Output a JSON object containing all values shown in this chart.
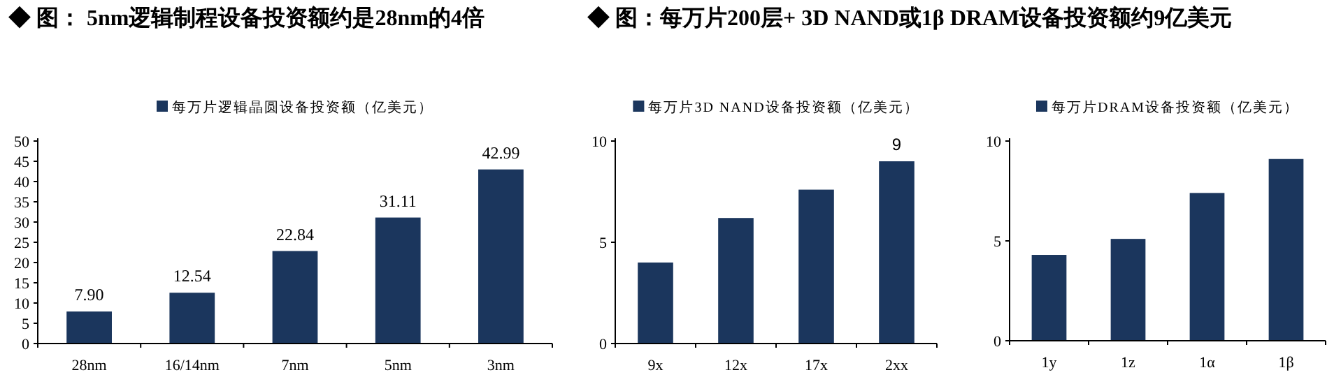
{
  "chart_data": [
    {
      "type": "bar",
      "title": "◆ 图： 5nm逻辑制程设备投资额约是28nm的4倍",
      "categories": [
        "28nm",
        "16/14nm",
        "7nm",
        "5nm",
        "3nm"
      ],
      "series": [
        {
          "name": "每万片逻辑晶圆设备投资额（亿美元）",
          "color": "#1b365d",
          "values": [
            7.9,
            12.54,
            22.84,
            31.11,
            42.99
          ],
          "value_labels": [
            "7.90",
            "12.54",
            "22.84",
            "31.11",
            "42.99"
          ]
        }
      ],
      "ylim": [
        0,
        50
      ],
      "yticks": [
        0,
        5,
        10,
        15,
        20,
        25,
        30,
        35,
        40,
        45,
        50
      ],
      "legend": "top"
    },
    {
      "type": "bar",
      "title": "◆ 图：每万片200层+ 3D NAND或1β DRAM设备投资额约9亿美元",
      "categories": [
        "9x",
        "12x",
        "17x",
        "2xx"
      ],
      "series": [
        {
          "name": "每万片3D NAND设备投资额（亿美元）",
          "color": "#1b365d",
          "values": [
            4.0,
            6.2,
            7.6,
            9
          ],
          "value_labels": [
            null,
            null,
            null,
            "9"
          ]
        }
      ],
      "ylim": [
        0,
        10
      ],
      "yticks": [
        0,
        5,
        10
      ],
      "legend": "top"
    },
    {
      "type": "bar",
      "categories": [
        "1y",
        "1z",
        "1α",
        "1β"
      ],
      "series": [
        {
          "name": "每万片DRAM设备投资额（亿美元）",
          "color": "#1b365d",
          "values": [
            4.3,
            5.1,
            7.4,
            9.1
          ]
        }
      ],
      "ylim": [
        0,
        10
      ],
      "yticks": [
        0,
        5,
        10
      ],
      "legend": "top"
    }
  ]
}
